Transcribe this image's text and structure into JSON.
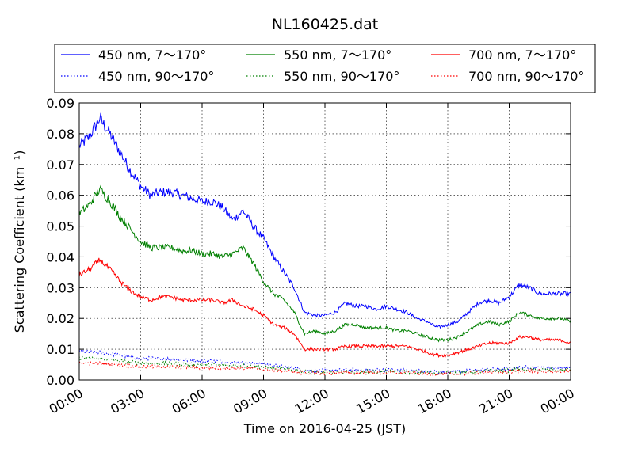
{
  "chart_data": {
    "type": "line",
    "title": "NL160425.dat",
    "xlabel": "Time on 2016-04-25 (JST)",
    "ylabel": "Scattering Coefficient (km⁻¹)",
    "x_ticks": [
      "00:00",
      "03:00",
      "06:00",
      "09:00",
      "12:00",
      "15:00",
      "18:00",
      "21:00",
      "00:00"
    ],
    "y_ticks": [
      "0.00",
      "0.01",
      "0.02",
      "0.03",
      "0.04",
      "0.05",
      "0.06",
      "0.07",
      "0.08",
      "0.09"
    ],
    "xlim_hours": [
      0,
      24
    ],
    "ylim": [
      0,
      0.09
    ],
    "grid": true,
    "legend_position": "top",
    "x": [
      0,
      0.5,
      1,
      1.5,
      2,
      2.5,
      3,
      3.5,
      4,
      4.5,
      5,
      5.5,
      6,
      6.5,
      7,
      7.5,
      8,
      8.5,
      9,
      9.5,
      10,
      10.5,
      11,
      11.5,
      12,
      12.5,
      13,
      13.5,
      14,
      14.5,
      15,
      15.5,
      16,
      16.5,
      17,
      17.5,
      18,
      18.5,
      19,
      19.5,
      20,
      20.5,
      21,
      21.5,
      22,
      22.5,
      23,
      23.5,
      24
    ],
    "series": [
      {
        "name": "450 nm, 7～170°",
        "color": "#0000ff",
        "style": "solid",
        "values": [
          0.076,
          0.079,
          0.085,
          0.08,
          0.074,
          0.068,
          0.063,
          0.06,
          0.061,
          0.061,
          0.06,
          0.059,
          0.058,
          0.058,
          0.056,
          0.052,
          0.055,
          0.05,
          0.046,
          0.04,
          0.035,
          0.03,
          0.022,
          0.021,
          0.021,
          0.022,
          0.025,
          0.024,
          0.024,
          0.023,
          0.024,
          0.023,
          0.022,
          0.02,
          0.019,
          0.017,
          0.018,
          0.019,
          0.022,
          0.025,
          0.026,
          0.025,
          0.027,
          0.031,
          0.03,
          0.028,
          0.028,
          0.028,
          0.028
        ]
      },
      {
        "name": "450 nm, 90～170°",
        "color": "#0000ff",
        "style": "dotted",
        "values": [
          0.0095,
          0.009,
          0.009,
          0.0085,
          0.008,
          0.0075,
          0.007,
          0.007,
          0.007,
          0.0068,
          0.0066,
          0.0064,
          0.0062,
          0.0062,
          0.006,
          0.0058,
          0.0057,
          0.0055,
          0.0052,
          0.0048,
          0.0044,
          0.004,
          0.0032,
          0.003,
          0.003,
          0.0031,
          0.0033,
          0.0033,
          0.0033,
          0.0032,
          0.0033,
          0.0032,
          0.0031,
          0.003,
          0.0028,
          0.0026,
          0.0027,
          0.0028,
          0.003,
          0.0033,
          0.0035,
          0.0035,
          0.0037,
          0.0042,
          0.0042,
          0.004,
          0.004,
          0.004,
          0.004
        ]
      },
      {
        "name": "550 nm, 7～170°",
        "color": "#008000",
        "style": "solid",
        "values": [
          0.054,
          0.057,
          0.062,
          0.058,
          0.053,
          0.049,
          0.045,
          0.043,
          0.043,
          0.043,
          0.042,
          0.042,
          0.041,
          0.041,
          0.04,
          0.041,
          0.043,
          0.038,
          0.032,
          0.028,
          0.026,
          0.022,
          0.015,
          0.016,
          0.015,
          0.016,
          0.018,
          0.018,
          0.017,
          0.017,
          0.017,
          0.016,
          0.016,
          0.015,
          0.014,
          0.013,
          0.013,
          0.014,
          0.016,
          0.018,
          0.019,
          0.018,
          0.019,
          0.022,
          0.021,
          0.02,
          0.02,
          0.02,
          0.019
        ]
      },
      {
        "name": "550 nm, 90～170°",
        "color": "#008000",
        "style": "dotted",
        "values": [
          0.0072,
          0.007,
          0.007,
          0.0066,
          0.0062,
          0.0058,
          0.0055,
          0.0054,
          0.0054,
          0.0053,
          0.0052,
          0.005,
          0.0049,
          0.0049,
          0.0048,
          0.0047,
          0.0046,
          0.0045,
          0.0042,
          0.0038,
          0.0035,
          0.0032,
          0.0026,
          0.0025,
          0.0025,
          0.0026,
          0.0028,
          0.0028,
          0.0028,
          0.0027,
          0.0028,
          0.0027,
          0.0026,
          0.0025,
          0.0024,
          0.0022,
          0.0023,
          0.0024,
          0.0026,
          0.0028,
          0.003,
          0.003,
          0.0031,
          0.0035,
          0.0035,
          0.0033,
          0.0033,
          0.0033,
          0.0033
        ]
      },
      {
        "name": "700 nm, 7～170°",
        "color": "#ff0000",
        "style": "solid",
        "values": [
          0.034,
          0.036,
          0.039,
          0.036,
          0.032,
          0.029,
          0.027,
          0.026,
          0.027,
          0.027,
          0.026,
          0.026,
          0.026,
          0.026,
          0.025,
          0.026,
          0.024,
          0.023,
          0.021,
          0.018,
          0.017,
          0.015,
          0.01,
          0.01,
          0.01,
          0.01,
          0.011,
          0.011,
          0.011,
          0.011,
          0.011,
          0.011,
          0.011,
          0.01,
          0.009,
          0.008,
          0.008,
          0.009,
          0.01,
          0.011,
          0.012,
          0.012,
          0.012,
          0.014,
          0.014,
          0.013,
          0.013,
          0.013,
          0.012
        ]
      },
      {
        "name": "700 nm, 90～170°",
        "color": "#ff0000",
        "style": "dotted",
        "values": [
          0.0055,
          0.0054,
          0.0054,
          0.0052,
          0.0049,
          0.0046,
          0.0044,
          0.0043,
          0.0043,
          0.0043,
          0.0042,
          0.0041,
          0.004,
          0.004,
          0.0039,
          0.0039,
          0.0038,
          0.0037,
          0.0035,
          0.0032,
          0.003,
          0.0027,
          0.0022,
          0.0021,
          0.0021,
          0.0022,
          0.0024,
          0.0024,
          0.0024,
          0.0023,
          0.0024,
          0.0023,
          0.0022,
          0.0021,
          0.002,
          0.0019,
          0.0019,
          0.002,
          0.0022,
          0.0024,
          0.0025,
          0.0025,
          0.0026,
          0.003,
          0.003,
          0.0028,
          0.0028,
          0.0028,
          0.0028
        ]
      }
    ]
  }
}
